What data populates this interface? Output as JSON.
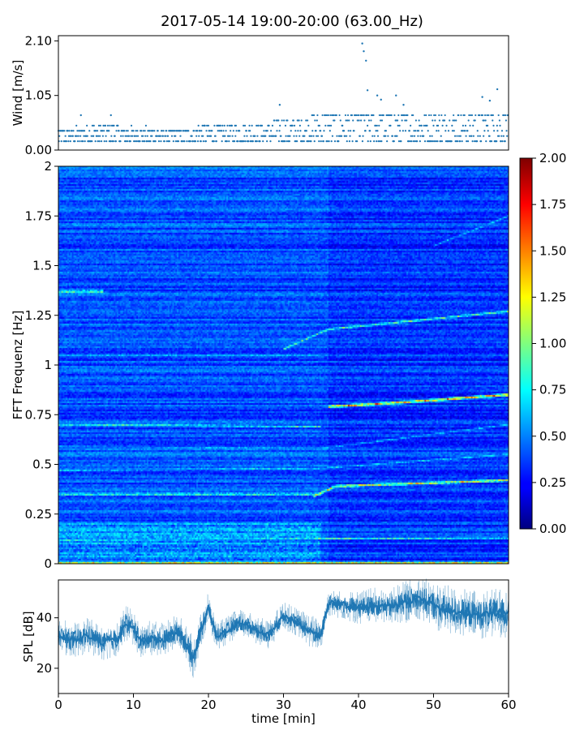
{
  "title": "2017-05-14 19:00-20:00 (63.00_Hz)",
  "chart_data": [
    {
      "id": "wind",
      "type": "scatter",
      "ylabel": "Wind [m/s]",
      "xlim": [
        0,
        60
      ],
      "ylim": [
        0,
        2.2
      ],
      "yticks": [
        "0.00",
        "1.05",
        "2.10"
      ],
      "ytick_values": [
        0,
        1.05,
        2.1
      ],
      "color": "#1f77b4",
      "levels": [
        0.07,
        0.17,
        0.27,
        0.37,
        0.47,
        0.57,
        0.67
      ],
      "profile": {
        "x": [
          0,
          5,
          10,
          15,
          20,
          25,
          30,
          35,
          40,
          45,
          50,
          55,
          60
        ],
        "typical_max": [
          0.35,
          0.45,
          0.4,
          0.35,
          0.45,
          0.45,
          0.55,
          0.65,
          0.85,
          0.75,
          0.75,
          0.75,
          0.8
        ]
      },
      "notable_points": [
        {
          "x": 3,
          "y": 0.67
        },
        {
          "x": 7,
          "y": 0.67
        },
        {
          "x": 29.5,
          "y": 0.87
        },
        {
          "x": 40.5,
          "y": 2.05
        },
        {
          "x": 40.7,
          "y": 1.9
        },
        {
          "x": 41,
          "y": 1.72
        },
        {
          "x": 41.2,
          "y": 1.15
        },
        {
          "x": 42.5,
          "y": 1.05
        },
        {
          "x": 43,
          "y": 0.97
        },
        {
          "x": 45,
          "y": 1.05
        },
        {
          "x": 46,
          "y": 0.87
        },
        {
          "x": 56.5,
          "y": 1.02
        },
        {
          "x": 58.5,
          "y": 1.17
        },
        {
          "x": 57.5,
          "y": 0.95
        }
      ]
    },
    {
      "id": "spectrogram",
      "type": "heatmap",
      "ylabel": "FFT Frequenz [Hz]",
      "xlim": [
        0,
        60
      ],
      "ylim": [
        0,
        2
      ],
      "yticks": [
        "0",
        "0.25",
        "0.5",
        "0.75",
        "1",
        "1.25",
        "1.5",
        "1.75",
        "2"
      ],
      "ytick_values": [
        0,
        0.25,
        0.5,
        0.75,
        1,
        1.25,
        1.5,
        1.75,
        2
      ],
      "colormap": "jet",
      "clim": [
        0,
        2
      ],
      "background_level": 0.18,
      "ridges": [
        {
          "x": [
            0,
            60
          ],
          "f": [
            0.005,
            0.005
          ],
          "amp": 1.6,
          "to_min": 35
        },
        {
          "x": [
            0,
            60
          ],
          "f": [
            0.12,
            0.13
          ],
          "amp": 1.1
        },
        {
          "x": [
            0,
            35
          ],
          "f": [
            0.35,
            0.35
          ],
          "amp": 1.3
        },
        {
          "x": [
            34,
            37,
            60
          ],
          "f": [
            0.34,
            0.39,
            0.42
          ],
          "amp": 1.6
        },
        {
          "x": [
            0,
            35,
            60
          ],
          "f": [
            0.47,
            0.48,
            0.55
          ],
          "amp": 0.9
        },
        {
          "x": [
            0,
            35,
            60
          ],
          "f": [
            0.59,
            0.58,
            0.7
          ],
          "amp": 0.8
        },
        {
          "x": [
            0,
            35
          ],
          "f": [
            0.7,
            0.69
          ],
          "amp": 1.1
        },
        {
          "x": [
            36,
            45,
            60
          ],
          "f": [
            0.79,
            0.81,
            0.85
          ],
          "amp": 1.9
        },
        {
          "x": [
            0,
            35
          ],
          "f": [
            1.05,
            1.05
          ],
          "amp": 0.8
        },
        {
          "x": [
            30,
            36,
            60
          ],
          "f": [
            1.08,
            1.18,
            1.27
          ],
          "amp": 1.2
        },
        {
          "x": [
            0,
            6
          ],
          "f": [
            1.37,
            1.37
          ],
          "amp": 1.4
        },
        {
          "x": [
            0,
            60
          ],
          "f": [
            1.42,
            1.42
          ],
          "amp": 0.6
        },
        {
          "x": [
            50,
            60
          ],
          "f": [
            1.6,
            1.75
          ],
          "amp": 0.8
        }
      ],
      "colorbar": {
        "ticks": [
          "0.00",
          "0.25",
          "0.50",
          "0.75",
          "1.00",
          "1.25",
          "1.50",
          "1.75",
          "2.00"
        ],
        "values": [
          0,
          0.25,
          0.5,
          0.75,
          1,
          1.25,
          1.5,
          1.75,
          2
        ]
      }
    },
    {
      "id": "spl",
      "type": "line",
      "ylabel": "SPL [dB]",
      "xlabel": "time [min]",
      "xlim": [
        0,
        60
      ],
      "ylim": [
        10,
        55
      ],
      "xticks": [
        "0",
        "10",
        "20",
        "30",
        "40",
        "50",
        "60"
      ],
      "xtick_values": [
        0,
        10,
        20,
        30,
        40,
        50,
        60
      ],
      "yticks": [
        "20",
        "40"
      ],
      "ytick_values": [
        20,
        40
      ],
      "color": "#1f77b4",
      "series": [
        {
          "x": [
            0,
            2,
            4,
            6,
            8,
            9,
            10,
            11,
            12,
            14,
            16,
            17,
            18,
            19,
            20,
            21,
            22,
            24,
            26,
            28,
            30,
            32,
            34,
            35,
            36,
            38,
            40,
            42,
            44,
            46,
            48,
            50,
            52,
            54,
            56,
            58,
            60
          ],
          "y": [
            33,
            31,
            33,
            30,
            32,
            38,
            36,
            30,
            32,
            31,
            35,
            30,
            24,
            35,
            44,
            33,
            34,
            38,
            36,
            33,
            41,
            38,
            34,
            33,
            46,
            45,
            44,
            45,
            44,
            46,
            48,
            45,
            43,
            42,
            41,
            42,
            42
          ],
          "spread": [
            5,
            5,
            5,
            5,
            5,
            5,
            5,
            5,
            5,
            5,
            5,
            5,
            6,
            5,
            5,
            4,
            4,
            4,
            4,
            4,
            4,
            4,
            5,
            4,
            4,
            4,
            5,
            5,
            5,
            6,
            6,
            7,
            7,
            7,
            7,
            7,
            7
          ]
        }
      ]
    }
  ]
}
